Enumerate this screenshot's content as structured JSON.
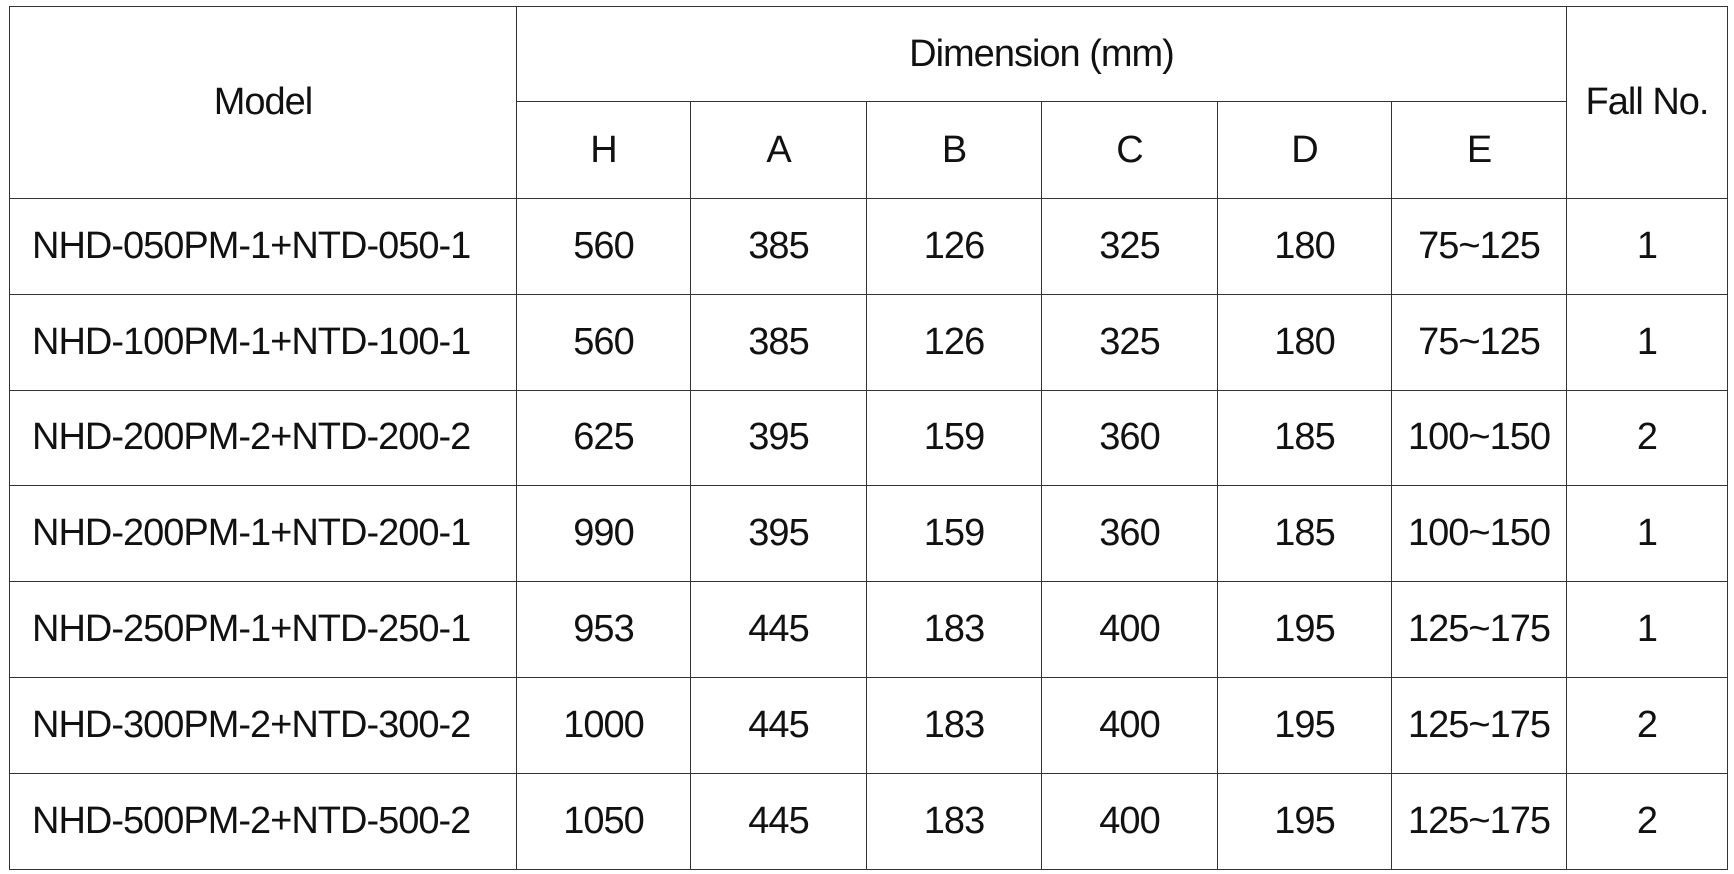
{
  "table": {
    "header": {
      "model": "Model",
      "dimension": "Dimension (mm)",
      "columns": [
        "H",
        "A",
        "B",
        "C",
        "D",
        "E"
      ],
      "fall_no": "Fall No."
    },
    "rows": [
      [
        "NHD-050PM-1+NTD-050-1",
        "560",
        "385",
        "126",
        "325",
        "180",
        "75~125",
        "1"
      ],
      [
        "NHD-100PM-1+NTD-100-1",
        "560",
        "385",
        "126",
        "325",
        "180",
        "75~125",
        "1"
      ],
      [
        "NHD-200PM-2+NTD-200-2",
        "625",
        "395",
        "159",
        "360",
        "185",
        "100~150",
        "2"
      ],
      [
        "NHD-200PM-1+NTD-200-1",
        "990",
        "395",
        "159",
        "360",
        "185",
        "100~150",
        "1"
      ],
      [
        "NHD-250PM-1+NTD-250-1",
        "953",
        "445",
        "183",
        "400",
        "195",
        "125~175",
        "1"
      ],
      [
        "NHD-300PM-2+NTD-300-2",
        "1000",
        "445",
        "183",
        "400",
        "195",
        "125~175",
        "2"
      ],
      [
        "NHD-500PM-2+NTD-500-2",
        "1050",
        "445",
        "183",
        "400",
        "195",
        "125~175",
        "2"
      ]
    ]
  }
}
